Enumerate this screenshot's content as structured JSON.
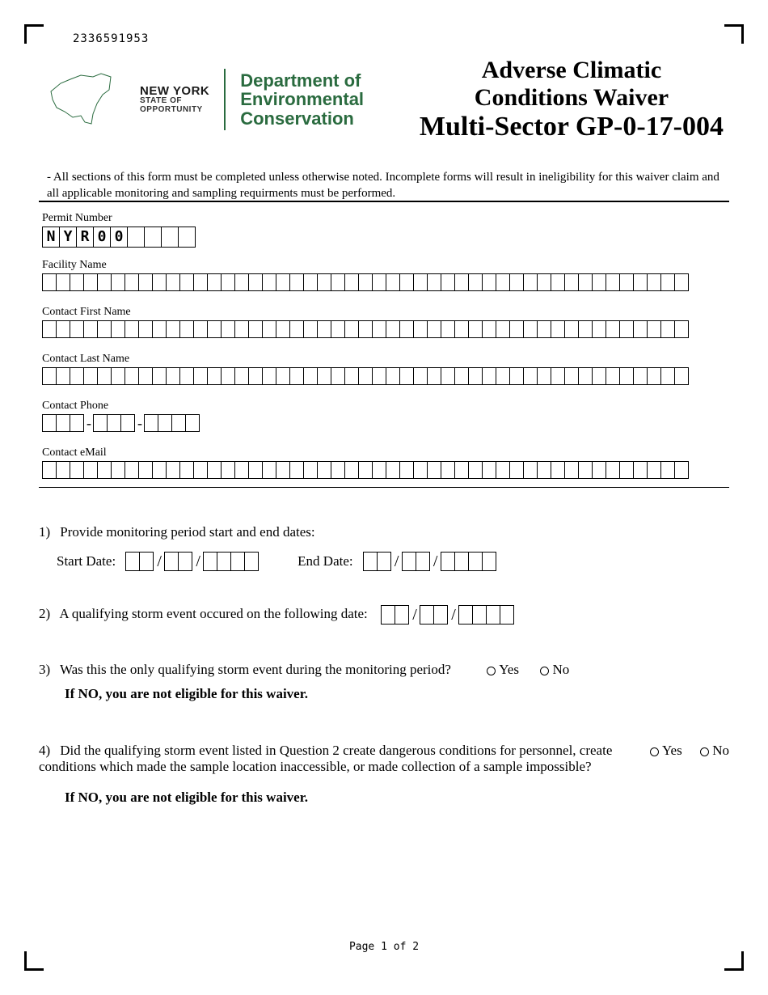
{
  "doc_id": "2336591953",
  "logo": {
    "state_name": "NEW YORK",
    "state_sub1": "STATE OF",
    "state_sub2": "OPPORTUNITY",
    "dept_l1": "Department of",
    "dept_l2": "Environmental",
    "dept_l3": "Conservation",
    "dept_color": "#2a6b3f"
  },
  "title": {
    "l1": "Adverse Climatic",
    "l2": "Conditions Waiver",
    "l3": "Multi-Sector GP-0-17-004"
  },
  "intro": "- All sections of this form must be completed unless otherwise noted.  Incomplete forms will result in ineligibility for this waiver claim and all applicable monitoring and sampling requirments must be performed.",
  "fields": {
    "permit_number": {
      "label": "Permit Number",
      "prefill": [
        "N",
        "Y",
        "R",
        "0",
        "0"
      ],
      "extra_cells": 4
    },
    "facility_name": {
      "label": "Facility Name",
      "cells": 47
    },
    "contact_first": {
      "label": "Contact First Name",
      "cells": 47
    },
    "contact_last": {
      "label": "Contact Last Name",
      "cells": 47
    },
    "contact_phone": {
      "label": "Contact Phone",
      "groups": [
        3,
        3,
        4
      ]
    },
    "contact_email": {
      "label": "Contact eMail",
      "cells": 47
    }
  },
  "q1": {
    "text": "Provide monitoring period start and end dates:",
    "start_label": "Start Date:",
    "end_label": "End Date:",
    "date_groups": [
      2,
      2,
      4
    ]
  },
  "q2": {
    "text": "A qualifying storm event occured on the following date:",
    "date_groups": [
      2,
      2,
      4
    ]
  },
  "q3": {
    "text": "Was this the only qualifying storm event during the monitoring period?",
    "yes": "Yes",
    "no": "No",
    "note": "If NO, you are not eligible for this waiver."
  },
  "q4": {
    "text": "Did the qualifying storm event listed in Question 2 create dangerous conditions for personnel, create conditions which made the sample location inaccessible, or made collection of a sample impossible?",
    "yes": "Yes",
    "no": "No",
    "note": "If NO, you are not eligible for this waiver."
  },
  "footer": "Page 1 of 2",
  "colors": {
    "text": "#000000",
    "dept": "#2a6b3f",
    "bg": "#ffffff"
  }
}
